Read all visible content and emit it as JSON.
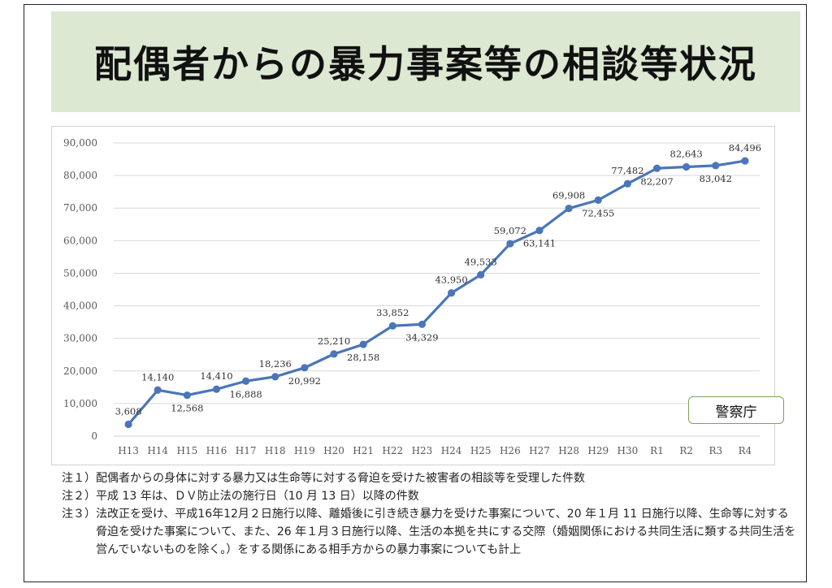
{
  "title": "配偶者からの暴力事案等の相談等状況",
  "source_badge": "警察庁",
  "notes": [
    {
      "lead": "注１）",
      "text": "配偶者からの身体に対する暴力又は生命等に対する脅迫を受けた被害者の相談等を受理した件数"
    },
    {
      "lead": "注２）",
      "text": "平成 13 年は、ＤＶ防止法の施行日（10 月 13 日）以降の件数"
    },
    {
      "lead": "注３）",
      "text": "法改正を受け、平成16年12月２日施行以降、離婚後に引き続き暴力を受けた事案について、20 年１月 11 日施行以降、生命等に対する脅迫を受けた事案について、また、26 年１月３日施行以降、生活の本拠を共にする交際（婚姻関係における共同生活に類する共同生活を営んでいないものを除く。）をする関係にある相手方からの暴力事案についても計上"
    }
  ],
  "chart_data": {
    "type": "line",
    "title": "",
    "xlabel": "",
    "ylabel": "",
    "categories": [
      "H13",
      "H14",
      "H15",
      "H16",
      "H17",
      "H18",
      "H19",
      "H20",
      "H21",
      "H22",
      "H23",
      "H24",
      "H25",
      "H26",
      "H27",
      "H28",
      "H29",
      "H30",
      "R1",
      "R2",
      "R3",
      "R4"
    ],
    "series": [
      {
        "values": [
          3608,
          14140,
          12568,
          14410,
          16888,
          18236,
          20992,
          25210,
          28158,
          33852,
          34329,
          43950,
          49533,
          59072,
          63141,
          69908,
          72455,
          77482,
          82207,
          82643,
          83042,
          84496
        ]
      }
    ],
    "data_labels": [
      "3,608",
      "14,140",
      "12,568",
      "14,410",
      "16,888",
      "18,236",
      "20,992",
      "25,210",
      "28,158",
      "33,852",
      "34,329",
      "43,950",
      "49,533",
      "59,072",
      "63,141",
      "69,908",
      "72,455",
      "77,482",
      "82,207",
      "82,643",
      "83,042",
      "84,496"
    ],
    "label_position": [
      "above",
      "above",
      "below",
      "above",
      "below",
      "above",
      "below",
      "above",
      "below",
      "above",
      "below",
      "above",
      "above",
      "above",
      "below",
      "above",
      "below",
      "above",
      "below",
      "above",
      "below",
      "above"
    ],
    "ylim": [
      0,
      90000
    ],
    "yticks": [
      0,
      10000,
      20000,
      30000,
      40000,
      50000,
      60000,
      70000,
      80000,
      90000
    ],
    "ytick_labels": [
      "0",
      "10,000",
      "20,000",
      "30,000",
      "40,000",
      "50,000",
      "60,000",
      "70,000",
      "80,000",
      "90,000"
    ],
    "grid": true,
    "line_color": "#4a76b8",
    "grid_color": "#d9d9d9"
  }
}
